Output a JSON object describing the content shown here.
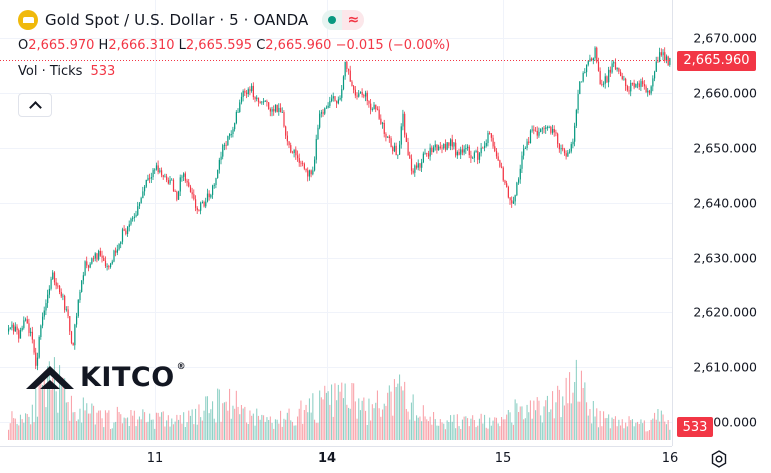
{
  "header": {
    "title": "Gold Spot / U.S. Dollar · 5 · OANDA",
    "wave_symbol": "≈",
    "ohlc": {
      "o_key": "O",
      "o_val": "2,665.970",
      "h_key": "H",
      "h_val": "2,666.310",
      "l_key": "L",
      "l_val": "2,665.595",
      "c_key": "C",
      "c_val": "2,665.960",
      "change": "−0.015 (−0.00%)"
    },
    "volume_label": "Vol · Ticks",
    "volume_value": "533"
  },
  "price_tag": "2,665.960",
  "volume_tag": "533",
  "brand": {
    "name": "KITCO",
    "reg": "®"
  },
  "colors": {
    "up": "#089981",
    "down": "#f23645",
    "coin": "#f0b90b"
  },
  "chart_data": {
    "type": "candlestick",
    "interval": "5",
    "x_tick_labels": [
      "11",
      "14",
      "15",
      "16"
    ],
    "y_tick_labels": [
      "2,670.000",
      "2,660.000",
      "2,650.000",
      "2,640.000",
      "2,630.000",
      "2,620.000",
      "2,610.000",
      "2,600.000"
    ],
    "ylim": [
      2596.7,
      2677.0
    ],
    "last_price": 2665.96,
    "last_volume": 533,
    "grid": true,
    "close_path": [
      [
        0,
        2611.0
      ],
      [
        6,
        2616.0
      ],
      [
        12,
        2617.5
      ],
      [
        18,
        2615.5
      ],
      [
        25,
        2618.5
      ],
      [
        30,
        2616.0
      ],
      [
        36,
        2610.0
      ],
      [
        40,
        2618.0
      ],
      [
        46,
        2622.5
      ],
      [
        52,
        2626.5
      ],
      [
        60,
        2624.0
      ],
      [
        66,
        2620.0
      ],
      [
        72,
        2614.0
      ],
      [
        78,
        2622.5
      ],
      [
        84,
        2628.5
      ],
      [
        92,
        2629.5
      ],
      [
        100,
        2631.0
      ],
      [
        108,
        2628.0
      ],
      [
        115,
        2631.5
      ],
      [
        122,
        2634.5
      ],
      [
        130,
        2636.0
      ],
      [
        138,
        2639.5
      ],
      [
        146,
        2644.5
      ],
      [
        155,
        2646.5
      ],
      [
        162,
        2645.0
      ],
      [
        170,
        2644.0
      ],
      [
        176,
        2641.0
      ],
      [
        182,
        2645.5
      ],
      [
        190,
        2641.5
      ],
      [
        197,
        2638.5
      ],
      [
        204,
        2640.0
      ],
      [
        212,
        2642.5
      ],
      [
        218,
        2647.0
      ],
      [
        224,
        2651.0
      ],
      [
        230,
        2652.0
      ],
      [
        236,
        2656.0
      ],
      [
        242,
        2660.0
      ],
      [
        250,
        2661.0
      ],
      [
        256,
        2658.5
      ],
      [
        264,
        2658.0
      ],
      [
        272,
        2657.0
      ],
      [
        281,
        2657.0
      ],
      [
        287,
        2651.0
      ],
      [
        293,
        2649.0
      ],
      [
        300,
        2648.0
      ],
      [
        306,
        2645.5
      ],
      [
        312,
        2644.5
      ],
      [
        318,
        2655.5
      ],
      [
        326,
        2657.5
      ],
      [
        334,
        2659.0
      ],
      [
        340,
        2659.0
      ],
      [
        345,
        2665.5
      ],
      [
        350,
        2662.0
      ],
      [
        356,
        2660.0
      ],
      [
        362,
        2660.5
      ],
      [
        368,
        2658.0
      ],
      [
        374,
        2657.5
      ],
      [
        380,
        2655.0
      ],
      [
        386,
        2652.0
      ],
      [
        392,
        2650.0
      ],
      [
        398,
        2649.0
      ],
      [
        402,
        2657.0
      ],
      [
        406,
        2650.0
      ],
      [
        412,
        2646.0
      ],
      [
        418,
        2646.5
      ],
      [
        424,
        2648.5
      ],
      [
        430,
        2649.5
      ],
      [
        438,
        2650.5
      ],
      [
        444,
        2650.0
      ],
      [
        450,
        2651.5
      ],
      [
        456,
        2649.0
      ],
      [
        462,
        2650.0
      ],
      [
        470,
        2649.0
      ],
      [
        478,
        2648.5
      ],
      [
        484,
        2651.0
      ],
      [
        490,
        2652.5
      ],
      [
        496,
        2648.0
      ],
      [
        502,
        2645.0
      ],
      [
        507,
        2642.0
      ],
      [
        513,
        2639.5
      ],
      [
        518,
        2645.0
      ],
      [
        524,
        2650.0
      ],
      [
        530,
        2652.5
      ],
      [
        536,
        2653.0
      ],
      [
        542,
        2653.5
      ],
      [
        548,
        2654.0
      ],
      [
        554,
        2652.5
      ],
      [
        560,
        2650.0
      ],
      [
        566,
        2648.0
      ],
      [
        572,
        2650.5
      ],
      [
        577,
        2660.0
      ],
      [
        583,
        2664.0
      ],
      [
        589,
        2666.0
      ],
      [
        595,
        2668.0
      ],
      [
        600,
        2661.0
      ],
      [
        606,
        2662.5
      ],
      [
        612,
        2665.0
      ],
      [
        618,
        2664.0
      ],
      [
        624,
        2661.5
      ],
      [
        630,
        2661.0
      ],
      [
        636,
        2661.0
      ],
      [
        642,
        2661.5
      ],
      [
        648,
        2660.0
      ],
      [
        654,
        2664.0
      ],
      [
        660,
        2668.0
      ],
      [
        666,
        2666.0
      ],
      [
        670,
        2666.0
      ]
    ],
    "volume_path": [
      [
        0,
        30
      ],
      [
        25,
        40
      ],
      [
        45,
        80
      ],
      [
        55,
        95
      ],
      [
        70,
        55
      ],
      [
        100,
        35
      ],
      [
        140,
        38
      ],
      [
        180,
        30
      ],
      [
        215,
        55
      ],
      [
        230,
        65
      ],
      [
        250,
        40
      ],
      [
        275,
        30
      ],
      [
        300,
        45
      ],
      [
        325,
        60
      ],
      [
        345,
        75
      ],
      [
        365,
        45
      ],
      [
        400,
        75
      ],
      [
        420,
        40
      ],
      [
        450,
        30
      ],
      [
        480,
        30
      ],
      [
        500,
        25
      ],
      [
        515,
        45
      ],
      [
        535,
        50
      ],
      [
        555,
        55
      ],
      [
        575,
        110
      ],
      [
        590,
        45
      ],
      [
        620,
        30
      ],
      [
        645,
        25
      ],
      [
        660,
        40
      ],
      [
        670,
        30
      ]
    ],
    "volume_max": 125
  }
}
